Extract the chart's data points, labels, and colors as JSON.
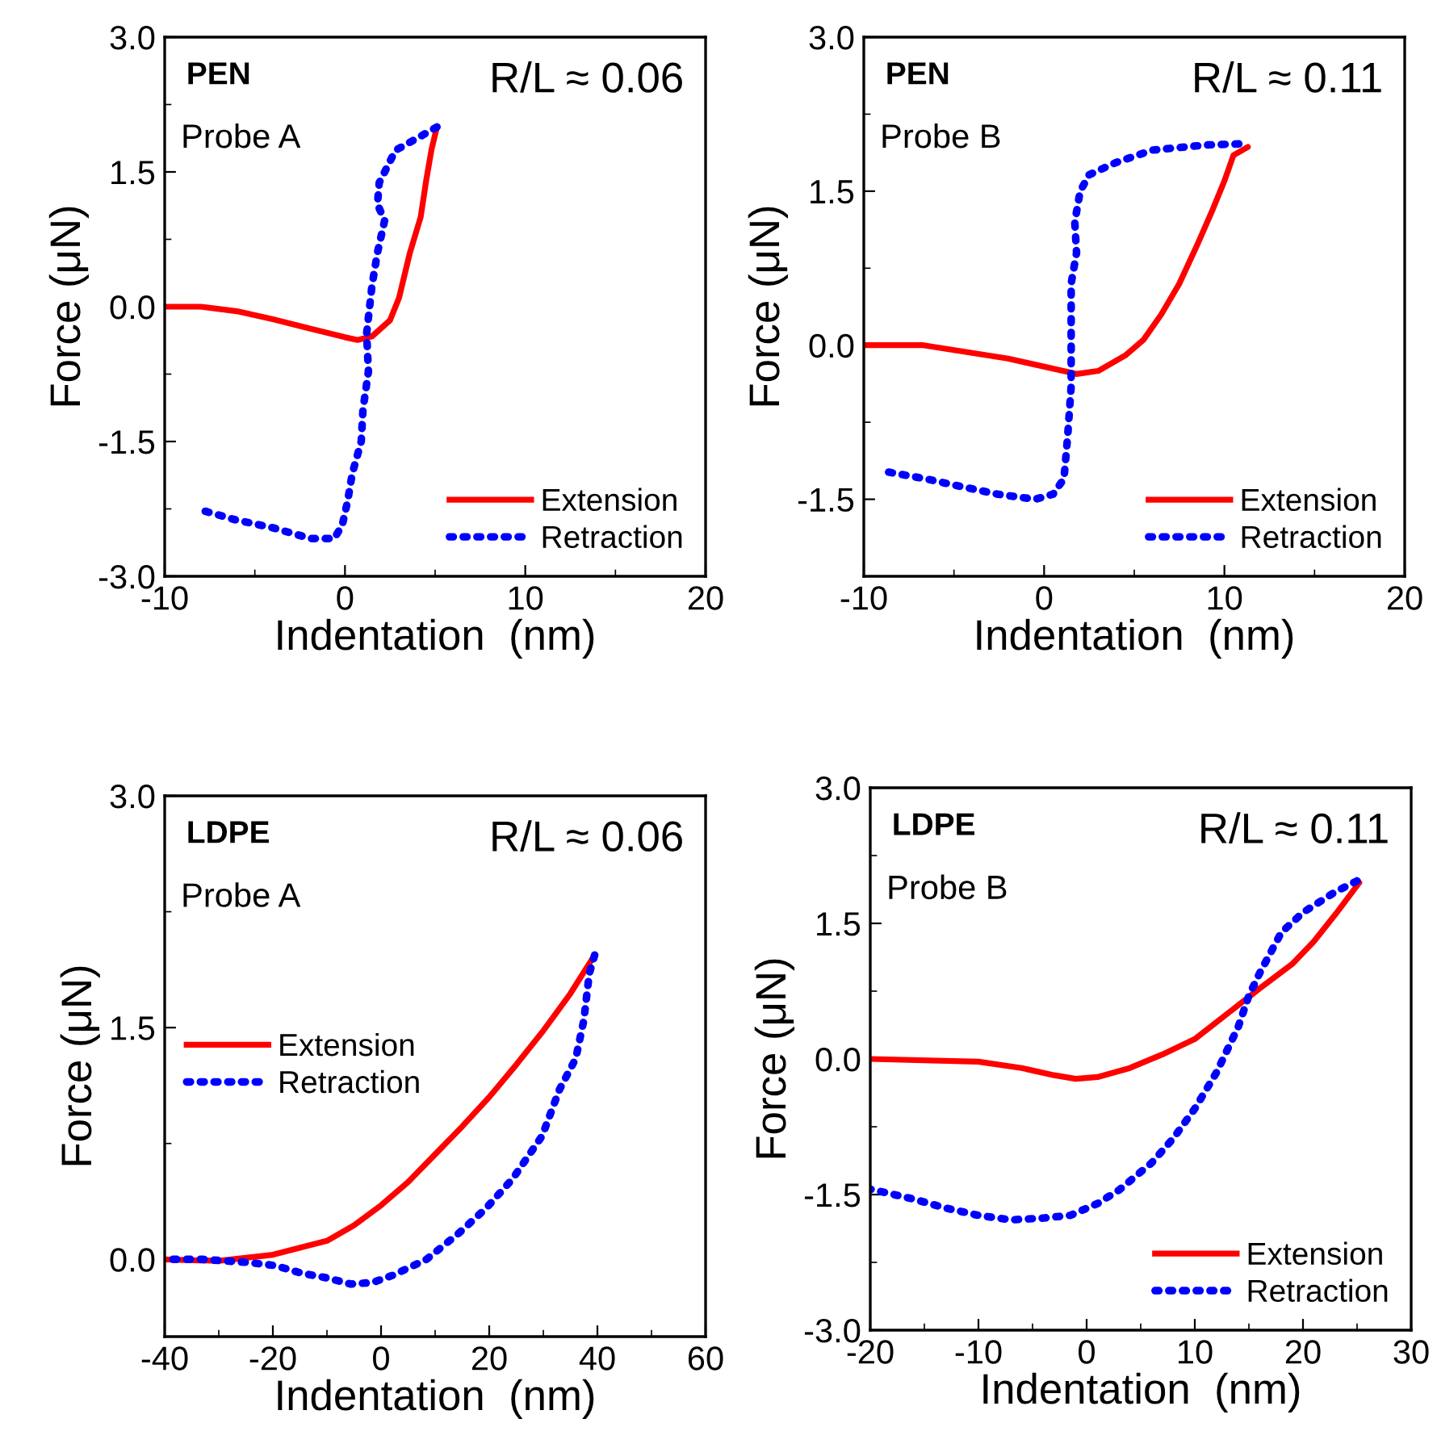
{
  "chart_data": [
    {
      "type": "line",
      "xlabel": "Indentation  (nm)",
      "ylabel": "Force (μN)",
      "annotations": [
        "PEN",
        "Probe A",
        "R/L ≈ 0.06"
      ],
      "xlim": [
        -10,
        20
      ],
      "ylim": [
        -3.0,
        3.0
      ],
      "xticks": [
        -10,
        {
          "value": -5,
          "label": null
        },
        0,
        {
          "value": 5,
          "label": null
        },
        10,
        {
          "value": 15,
          "label": null
        },
        20
      ],
      "yticks": [
        {
          "value": -3,
          "label": "-3.0"
        },
        {
          "value": -2.25,
          "label": null
        },
        {
          "value": -1.5,
          "label": "-1.5"
        },
        {
          "value": -0.75,
          "label": null
        },
        {
          "value": 0,
          "label": "0.0"
        },
        {
          "value": 0.75,
          "label": null
        },
        {
          "value": 1.5,
          "label": "1.5"
        },
        {
          "value": 2.25,
          "label": null
        },
        {
          "value": 3,
          "label": "3.0"
        }
      ],
      "legend": "bottom right",
      "grid": false,
      "series": [
        {
          "name": "Extension",
          "color": "#ff0000",
          "line_style": "solid",
          "x": [
            -10,
            -8,
            -6,
            -4,
            -2,
            0,
            0.7,
            1.5,
            2.5,
            3,
            3.6,
            4.2,
            4.5,
            4.8,
            5.1
          ],
          "values": [
            0,
            0,
            -0.05,
            -0.14,
            -0.24,
            -0.34,
            -0.37,
            -0.33,
            -0.15,
            0.1,
            0.6,
            1.0,
            1.4,
            1.75,
            2.0
          ]
        },
        {
          "name": "Retraction",
          "color": "#0000ff",
          "line_style": "dotted",
          "x": [
            5.1,
            3.6,
            2.8,
            1.9,
            1.8,
            2.2,
            1.8,
            1.5,
            1.2,
            1.3,
            1.0,
            0.9,
            0.4,
            0.15,
            -0.15,
            -0.6,
            -1.9,
            -4,
            -6.1,
            -8.2
          ],
          "values": [
            2.0,
            1.83,
            1.74,
            1.38,
            1.14,
            0.96,
            0.6,
            0.24,
            -0.3,
            -0.72,
            -1.14,
            -1.5,
            -1.86,
            -2.16,
            -2.43,
            -2.58,
            -2.58,
            -2.46,
            -2.37,
            -2.25
          ]
        }
      ]
    },
    {
      "type": "line",
      "xlabel": "Indentation  (nm)",
      "ylabel": "Force (μN)",
      "annotations": [
        "PEN",
        "Probe B",
        "R/L ≈ 0.11"
      ],
      "xlim": [
        -10,
        20
      ],
      "ylim": [
        -2.25,
        3.0
      ],
      "xticks": [
        -10,
        {
          "value": -5,
          "label": null
        },
        0,
        {
          "value": 5,
          "label": null
        },
        10,
        {
          "value": 15,
          "label": null
        },
        20
      ],
      "yticks": [
        {
          "value": -1.5,
          "label": "-1.5"
        },
        {
          "value": -0.75,
          "label": null
        },
        {
          "value": 0,
          "label": "0.0"
        },
        {
          "value": 0.75,
          "label": null
        },
        {
          "value": 1.5,
          "label": "1.5"
        },
        {
          "value": 2.25,
          "label": null
        },
        {
          "value": 3,
          "label": "3.0"
        }
      ],
      "legend": "bottom right",
      "grid": false,
      "series": [
        {
          "name": "Extension",
          "color": "#ff0000",
          "line_style": "solid",
          "x": [
            -10,
            -6.7,
            -2,
            1.8,
            3,
            4.5,
            5.5,
            6.5,
            7.5,
            8.5,
            9.3,
            10,
            10.5,
            11.3
          ],
          "values": [
            0,
            0,
            -0.13,
            -0.28,
            -0.25,
            -0.1,
            0.05,
            0.3,
            0.6,
            0.98,
            1.3,
            1.6,
            1.85,
            1.93
          ]
        },
        {
          "name": "Retraction",
          "color": "#0000ff",
          "line_style": "dotted",
          "x": [
            10.8,
            9,
            6,
            4,
            2.5,
            2.0,
            1.7,
            1.8,
            1.5,
            1.5,
            1.5,
            1.3,
            1.1,
            0.5,
            -0.5,
            -2.6,
            -4.5,
            -6.6,
            -8.8
          ],
          "values": [
            1.96,
            1.95,
            1.9,
            1.78,
            1.66,
            1.5,
            1.2,
            0.9,
            0.6,
            0,
            -0.4,
            -0.9,
            -1.3,
            -1.45,
            -1.5,
            -1.45,
            -1.38,
            -1.3,
            -1.23
          ]
        }
      ]
    },
    {
      "type": "line",
      "xlabel": "Indentation  (nm)",
      "ylabel": "Force (μN)",
      "annotations": [
        "LDPE",
        "Probe A",
        "R/L ≈ 0.06"
      ],
      "xlim": [
        -40,
        60
      ],
      "ylim": [
        -0.5,
        3.0
      ],
      "xticks": [
        -40,
        {
          "value": -30,
          "label": null
        },
        -20,
        {
          "value": -10,
          "label": null
        },
        0,
        {
          "value": 10,
          "label": null
        },
        20,
        {
          "value": 30,
          "label": null
        },
        40,
        {
          "value": 50,
          "label": null
        },
        60
      ],
      "yticks": [
        {
          "value": 0,
          "label": "0.0"
        },
        {
          "value": 0.75,
          "label": null
        },
        {
          "value": 1.5,
          "label": "1.5"
        },
        {
          "value": 2.25,
          "label": null
        },
        {
          "value": 3,
          "label": "3.0"
        }
      ],
      "legend": "center left",
      "grid": false,
      "series": [
        {
          "name": "Extension",
          "color": "#ff0000",
          "line_style": "solid",
          "x": [
            -40,
            -30,
            -20,
            -10,
            -5,
            0,
            5,
            10,
            15,
            20,
            25,
            30,
            35,
            39.5
          ],
          "values": [
            0,
            -0.01,
            0.03,
            0.12,
            0.22,
            0.35,
            0.5,
            0.68,
            0.86,
            1.05,
            1.26,
            1.48,
            1.72,
            1.97
          ]
        },
        {
          "name": "Retraction",
          "color": "#0000ff",
          "line_style": "dotted",
          "x": [
            39.5,
            38.5,
            37.5,
            36,
            33,
            29.8,
            24.3,
            19.4,
            14.4,
            8.4,
            2.4,
            -1.6,
            -5.6,
            -10,
            -14.6,
            -19.6,
            -24.6,
            -33,
            -40
          ],
          "values": [
            1.97,
            1.85,
            1.55,
            1.3,
            1.1,
            0.8,
            0.52,
            0.33,
            0.17,
            0.0,
            -0.1,
            -0.15,
            -0.16,
            -0.12,
            -0.09,
            -0.04,
            -0.02,
            0,
            0
          ]
        }
      ]
    },
    {
      "type": "line",
      "xlabel": "Indentation  (nm)",
      "ylabel": "Force (μN)",
      "annotations": [
        "LDPE",
        "Probe B",
        "R/L ≈ 0.11"
      ],
      "xlim": [
        -20,
        30
      ],
      "ylim": [
        -3.0,
        3.0
      ],
      "xticks": [
        -20,
        {
          "value": -15,
          "label": null
        },
        -10,
        {
          "value": -5,
          "label": null
        },
        0,
        {
          "value": 5,
          "label": null
        },
        10,
        {
          "value": 15,
          "label": null
        },
        20,
        {
          "value": 25,
          "label": null
        },
        30
      ],
      "yticks": [
        {
          "value": -3,
          "label": "-3.0"
        },
        {
          "value": -2.25,
          "label": null
        },
        {
          "value": -1.5,
          "label": "-1.5"
        },
        {
          "value": -0.75,
          "label": null
        },
        {
          "value": 0,
          "label": "0.0"
        },
        {
          "value": 0.75,
          "label": null
        },
        {
          "value": 1.5,
          "label": "1.5"
        },
        {
          "value": 2.25,
          "label": null
        },
        {
          "value": 3,
          "label": "3.0"
        }
      ],
      "legend": "bottom right",
      "grid": false,
      "series": [
        {
          "name": "Extension",
          "color": "#ff0000",
          "line_style": "solid",
          "x": [
            -20,
            -10,
            -6,
            -3,
            -1,
            1,
            4,
            7,
            10,
            13,
            16,
            19,
            21,
            23,
            25.2
          ],
          "values": [
            0,
            -0.03,
            -0.1,
            -0.18,
            -0.22,
            -0.2,
            -0.1,
            0.05,
            0.22,
            0.5,
            0.78,
            1.05,
            1.3,
            1.6,
            1.95
          ]
        },
        {
          "name": "Retraction",
          "color": "#0000ff",
          "line_style": "dotted",
          "x": [
            25,
            23,
            20,
            18,
            16,
            15,
            14,
            12,
            10,
            8,
            6,
            3,
            1,
            -1.5,
            -4,
            -7,
            -10,
            -13,
            -16,
            -20
          ],
          "values": [
            1.97,
            1.85,
            1.62,
            1.4,
            0.95,
            0.7,
            0.35,
            -0.15,
            -0.55,
            -0.88,
            -1.15,
            -1.45,
            -1.6,
            -1.73,
            -1.76,
            -1.78,
            -1.73,
            -1.65,
            -1.55,
            -1.44
          ]
        }
      ]
    }
  ]
}
